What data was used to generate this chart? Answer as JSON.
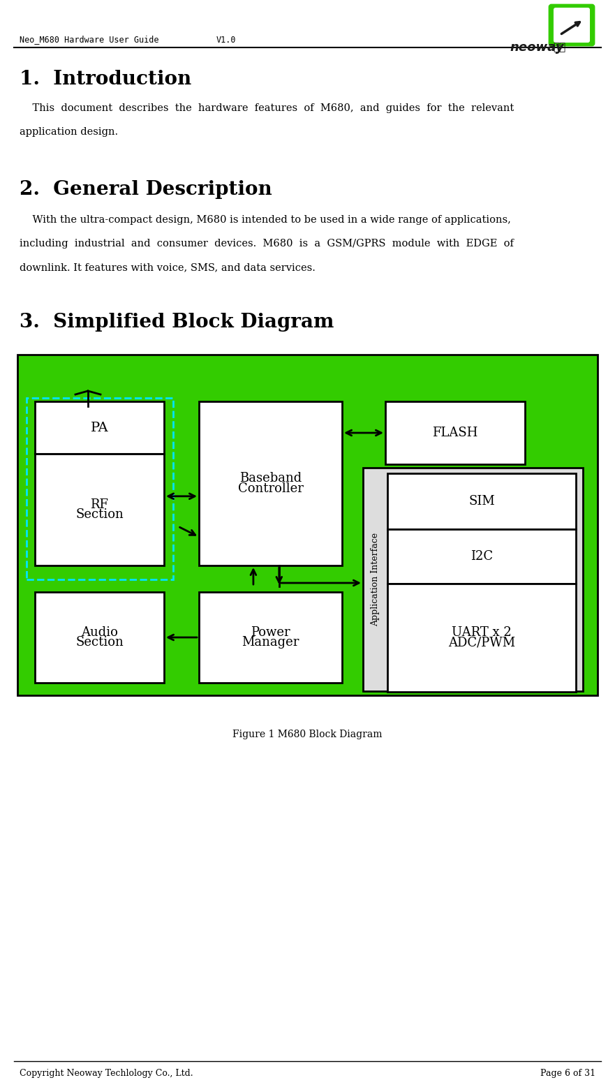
{
  "page_width": 8.81,
  "page_height": 15.57,
  "bg_color": "#ffffff",
  "header_left": "Neo_M680 Hardware User Guide",
  "header_center": "V1.0",
  "footer_left": "Copyright Neoway Techlology Co., Ltd.",
  "footer_right": "Page 6 of 31",
  "s1_title": "1.  Introduction",
  "s1_body_line1": "    This  document  describes  the  hardware  features  of  M680,  and  guides  for  the  relevant",
  "s1_body_line2": "application design.",
  "s2_title": "2.  General Description",
  "s2_body_line1": "    With the ultra-compact design, M680 is intended to be used in a wide range of applications,",
  "s2_body_line2": "including  industrial  and  consumer  devices.  M680  is  a  GSM/GPRS  module  with  EDGE  of",
  "s2_body_line3": "downlink. It features with voice, SMS, and data services.",
  "s3_title": "3.  Simplified Block Diagram",
  "diagram_caption": "Figure 1 M680 Block Diagram",
  "green": "#33cc00",
  "white": "#ffffff",
  "black": "#000000",
  "cyan": "#00e5ff"
}
